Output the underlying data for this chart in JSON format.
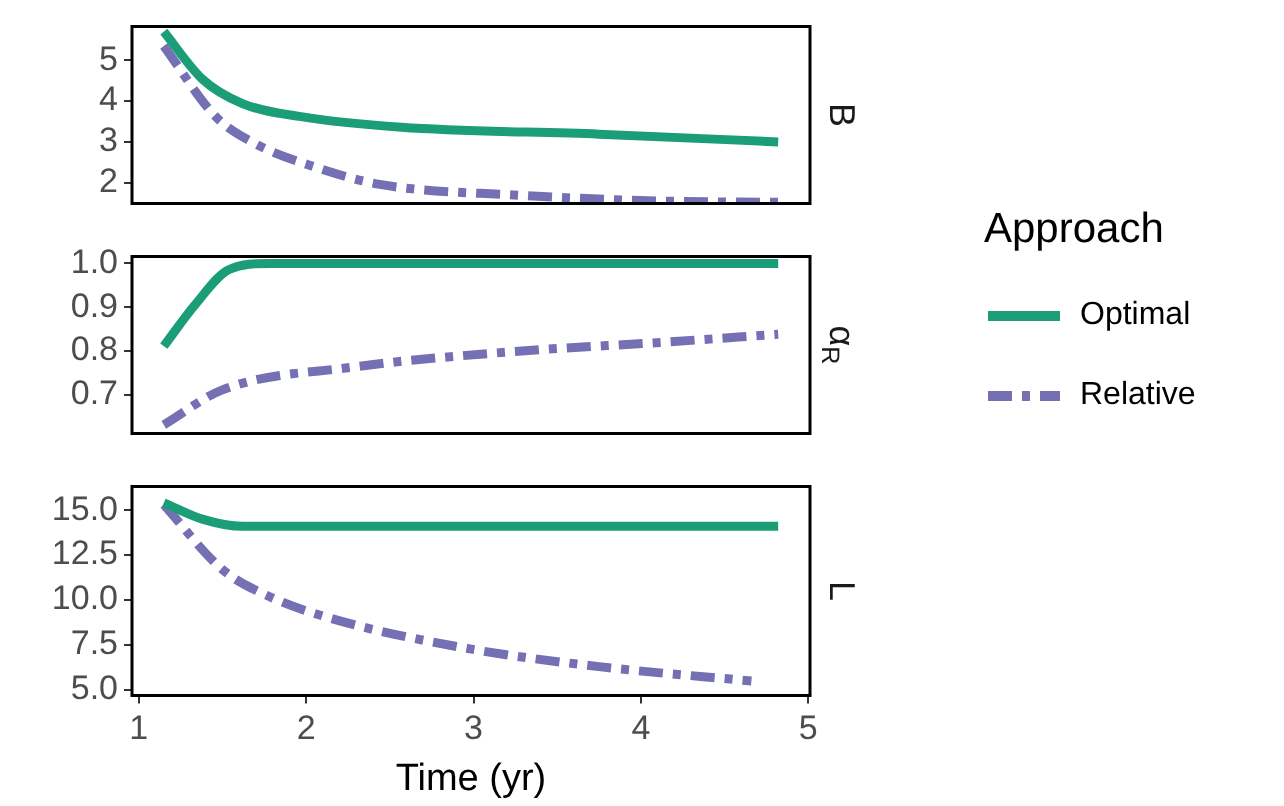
{
  "chart_data": [
    {
      "type": "line",
      "title": "B",
      "xlim": [
        0.96,
        5.01
      ],
      "xticks": [
        1,
        2,
        3,
        4,
        5
      ],
      "ylim": [
        1.49,
        5.83
      ],
      "yticks": [
        2,
        3,
        4,
        5
      ],
      "tick_labels": "y",
      "grid": false,
      "legend": false,
      "marker": "none",
      "series": [
        {
          "color": "#1b9e77",
          "line_style": "solid",
          "x": [
            1.15,
            1.38,
            1.62,
            1.97,
            2.57,
            3.75,
            4.82
          ],
          "values": [
            5.7,
            4.54,
            3.94,
            3.62,
            3.36,
            3.19,
            3.0
          ]
        },
        {
          "color": "#7570b3",
          "line_style": "dashed",
          "x": [
            1.15,
            1.46,
            1.69,
            2.05,
            2.44,
            3.24,
            4.14,
            4.82
          ],
          "values": [
            5.35,
            3.62,
            2.97,
            2.39,
            1.96,
            1.7,
            1.55,
            1.52
          ]
        }
      ]
    },
    {
      "type": "line",
      "title": "α$_{R}$",
      "xlim": [
        0.96,
        5.01
      ],
      "xticks": [
        1,
        2,
        3,
        4,
        5
      ],
      "ylim": [
        0.611,
        1.016
      ],
      "yticks": [
        {
          "value": 0.7,
          "label": "0.7"
        },
        {
          "value": 0.8,
          "label": "0.8"
        },
        {
          "value": 0.9,
          "label": "0.9"
        },
        {
          "value": 1,
          "label": "1.0"
        }
      ],
      "tick_labels": "y",
      "grid": false,
      "legend": "right",
      "legend_title": "Approach",
      "marker": "none",
      "series": [
        {
          "name": "Optimal",
          "color": "#1b9e77",
          "line_style": "solid",
          "x": [
            1.15,
            1.34,
            1.54,
            1.78,
            4.82
          ],
          "values": [
            0.811,
            0.907,
            0.986,
            1.0,
            1.0
          ]
        },
        {
          "name": "Relative",
          "color": "#7570b3",
          "line_style": "dashed",
          "x": [
            1.15,
            1.5,
            2.28,
            3.19,
            4.14,
            4.82
          ],
          "values": [
            0.631,
            0.711,
            0.763,
            0.797,
            0.82,
            0.838
          ]
        }
      ]
    },
    {
      "type": "line",
      "title": "L",
      "xlabel": "Time (yr)",
      "xlim": [
        0.96,
        5.01
      ],
      "xticks": [
        1,
        2,
        3,
        4,
        5
      ],
      "ylim": [
        4.69,
        16.32
      ],
      "yticks": [
        {
          "value": 5,
          "label": "5.0"
        },
        {
          "value": 7.5,
          "label": "7.5"
        },
        {
          "value": 10,
          "label": "10.0"
        },
        {
          "value": 12.5,
          "label": "12.5"
        },
        {
          "value": 15,
          "label": "15.0"
        }
      ],
      "grid": false,
      "legend": false,
      "marker": "none",
      "series": [
        {
          "color": "#1b9e77",
          "line_style": "solid",
          "x": [
            1.15,
            1.38,
            1.62,
            4.82
          ],
          "values": [
            15.4,
            14.5,
            14.1,
            14.1
          ]
        },
        {
          "color": "#7570b3",
          "line_style": "dashed",
          "x": [
            1.15,
            1.5,
            1.78,
            2.18,
            2.97,
            3.75,
            4.66
          ],
          "values": [
            15.3,
            11.7,
            10.2,
            8.9,
            7.3,
            6.3,
            5.5
          ]
        }
      ]
    }
  ]
}
